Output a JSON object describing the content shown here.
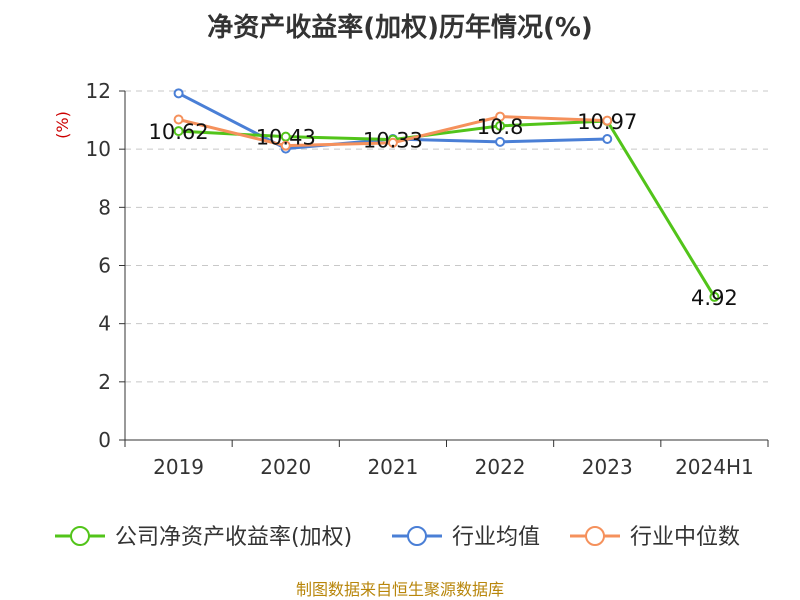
{
  "chart_data": {
    "type": "line",
    "title": "净资产收益率(加权)历年情况(%)",
    "ylabel": "(%)",
    "categories": [
      "2019",
      "2020",
      "2021",
      "2022",
      "2023",
      "2024H1"
    ],
    "ylim": [
      0,
      12
    ],
    "yticks": [
      0,
      2,
      4,
      6,
      8,
      10,
      12
    ],
    "grid": true,
    "legend_position": "bottom",
    "series": [
      {
        "name": "公司净资产收益率(加权)",
        "color": "#52c41a",
        "values": [
          10.62,
          10.43,
          10.33,
          10.8,
          10.97,
          4.92
        ],
        "labels": [
          "10.62",
          "10.43",
          "10.33",
          "10.8",
          "10.97",
          "4.92"
        ]
      },
      {
        "name": "行业均值",
        "color": "#4a7fd6",
        "values": [
          11.92,
          10.02,
          10.35,
          10.25,
          10.35,
          null
        ]
      },
      {
        "name": "行业中位数",
        "color": "#f5915c",
        "values": [
          11.02,
          10.12,
          10.22,
          11.12,
          10.98,
          null
        ]
      }
    ],
    "source": "制图数据来自恒生聚源数据库"
  }
}
